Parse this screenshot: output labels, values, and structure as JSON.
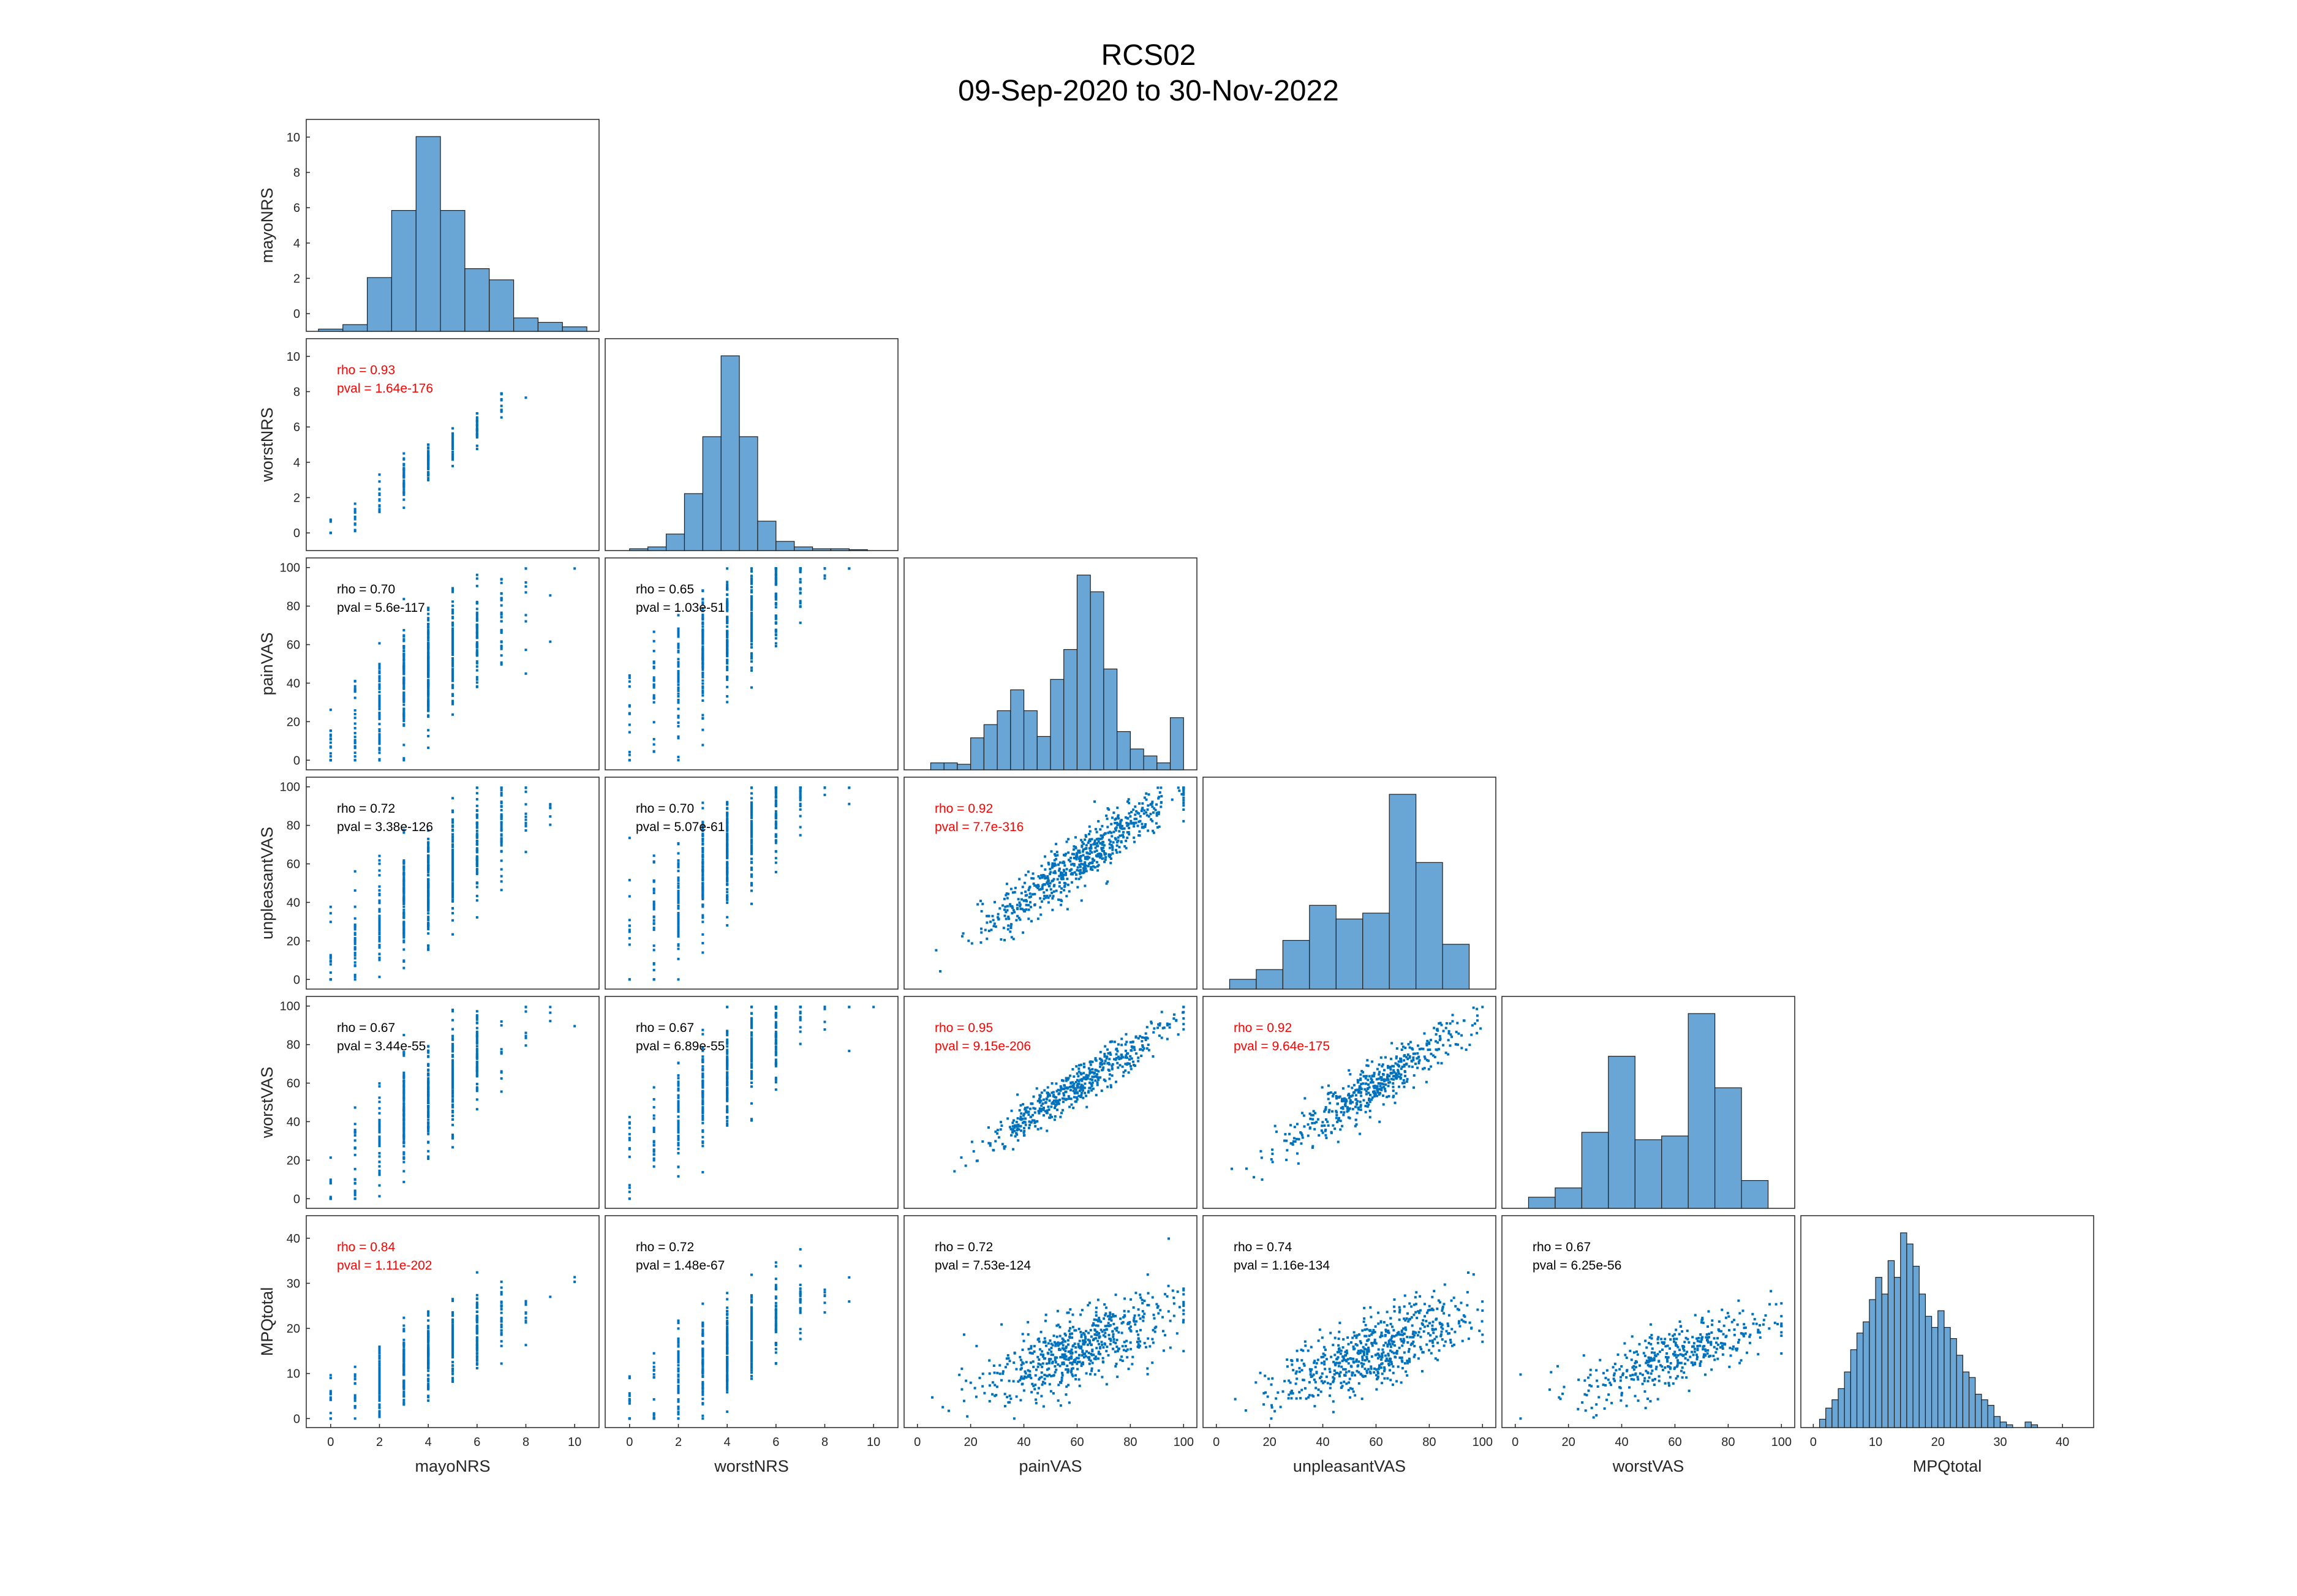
{
  "title": "RCS02",
  "subtitle": "09-Sep-2020 to 30-Nov-2022",
  "chart_data": {
    "type": "scatter-matrix",
    "variables": [
      "mayoNRS",
      "worstNRS",
      "painVAS",
      "unpleasantVAS",
      "worstVAS",
      "MPQtotal"
    ],
    "colors": {
      "bar_fill": "#6aa6d5",
      "bar_edge": "#1f1f1f",
      "point": "#0072bd",
      "significant_text": "#ff0000",
      "normal_text": "#000000"
    },
    "panels": [
      {
        "name": "mayoNRS",
        "xlim": [
          -1,
          11
        ],
        "ylim": [
          -1,
          11
        ],
        "xticks": [
          0,
          2,
          4,
          6,
          8,
          10
        ],
        "yticks": [
          0,
          2,
          4,
          6,
          8,
          10
        ],
        "histogram": {
          "edges": [
            -0.5,
            0.5,
            1.5,
            2.5,
            3.5,
            4.5,
            5.5,
            6.5,
            7.5,
            8.5,
            9.5,
            10.5
          ],
          "heights": [
            0.1,
            0.3,
            2.4,
            5.4,
            8.7,
            5.4,
            2.8,
            2.3,
            0.6,
            0.4,
            0.2
          ]
        }
      },
      {
        "name": "worstNRS",
        "xlim": [
          -1,
          11
        ],
        "ylim": [
          -1,
          11
        ],
        "xticks": [
          0,
          2,
          4,
          6,
          8,
          10
        ],
        "yticks": [
          0,
          2,
          4,
          6,
          8,
          10
        ],
        "histogram": {
          "edges": [
            0,
            0.75,
            1.5,
            2.25,
            3,
            3.75,
            4.5,
            5.25,
            6,
            6.75,
            7.5,
            8.25,
            9,
            9.75
          ],
          "heights": [
            0.1,
            0.2,
            0.9,
            3.1,
            6.2,
            10.6,
            6.2,
            1.6,
            0.5,
            0.2,
            0.1,
            0.1,
            0.05
          ]
        }
      },
      {
        "name": "painVAS",
        "xlim": [
          -5,
          105
        ],
        "ylim": [
          -5,
          105
        ],
        "xticks": [
          0,
          20,
          40,
          60,
          80,
          100
        ],
        "yticks": [
          0,
          20,
          40,
          60,
          80,
          100
        ],
        "histogram": {
          "edges": [
            5,
            10,
            15,
            20,
            25,
            30,
            35,
            40,
            45,
            50,
            55,
            60,
            65,
            70,
            75,
            80,
            85,
            90,
            95,
            100
          ],
          "heights": [
            1,
            1,
            0.8,
            4.6,
            6.5,
            8.5,
            11.5,
            8.5,
            4.8,
            13,
            17.3,
            28,
            25.6,
            14.5,
            5.5,
            3,
            2,
            1,
            7.5
          ]
        }
      },
      {
        "name": "unpleasantVAS",
        "xlim": [
          -5,
          105
        ],
        "ylim": [
          -5,
          105
        ],
        "xticks": [
          0,
          20,
          40,
          60,
          80,
          100
        ],
        "yticks": [
          0,
          20,
          40,
          60,
          80,
          100
        ],
        "histogram": {
          "edges": [
            5,
            15,
            25,
            35,
            45,
            55,
            65,
            75,
            85,
            95
          ],
          "heights": [
            0.5,
            1,
            2.5,
            4.3,
            3.6,
            3.9,
            10,
            6.5,
            2.3,
            2.8
          ]
        }
      },
      {
        "name": "worstVAS",
        "xlim": [
          -5,
          105
        ],
        "ylim": [
          -5,
          105
        ],
        "xticks": [
          0,
          20,
          40,
          60,
          80,
          100
        ],
        "yticks": [
          0,
          20,
          40,
          60,
          80,
          100
        ],
        "histogram": {
          "edges": [
            5,
            15,
            25,
            35,
            45,
            55,
            65,
            75,
            85,
            95
          ],
          "heights": [
            0.6,
            1.1,
            4.1,
            8.2,
            3.7,
            3.9,
            10.5,
            6.5,
            1.5,
            0.7
          ]
        }
      },
      {
        "name": "MPQtotal",
        "xlim": [
          -2,
          45
        ],
        "ylim": [
          -2,
          45
        ],
        "xticks": [
          0,
          10,
          20,
          30,
          40
        ],
        "yticks": [
          0,
          10,
          20,
          30,
          40
        ],
        "histogram": {
          "edges": [
            1,
            2,
            3,
            4,
            5,
            6,
            7,
            8,
            9,
            10,
            11,
            12,
            13,
            14,
            15,
            16,
            17,
            18,
            19,
            20,
            21,
            22,
            23,
            24,
            25,
            26,
            27,
            28,
            29,
            30,
            31,
            32,
            33,
            34,
            35,
            36,
            37
          ],
          "heights": [
            3,
            7,
            10,
            14,
            20,
            28,
            34,
            38,
            46,
            54,
            48,
            60,
            54,
            70,
            66,
            58,
            48,
            40,
            36,
            42,
            36,
            32,
            26,
            20,
            18,
            12,
            10,
            8,
            4,
            2,
            1,
            0,
            0,
            2,
            1,
            0
          ]
        }
      }
    ],
    "correlations": [
      {
        "row": 1,
        "col": 0,
        "rho": "rho = 0.93",
        "pval": "pval = 1.64e-176",
        "significant": true,
        "slope": 1.0,
        "intercept": 0.0,
        "xmin": 0,
        "xmax": 10,
        "noise": 0.6,
        "n": 180,
        "step": 1
      },
      {
        "row": 2,
        "col": 0,
        "rho": "rho = 0.70",
        "pval": "pval = 5.6e-117",
        "significant": false,
        "slope": 8.6,
        "intercept": 12,
        "xmin": 0,
        "xmax": 10,
        "noise": 14,
        "n": 520,
        "step": 1
      },
      {
        "row": 2,
        "col": 1,
        "rho": "rho = 0.65",
        "pval": "pval = 1.03e-51",
        "significant": false,
        "slope": 11,
        "intercept": 22,
        "xmin": 0,
        "xmax": 10,
        "noise": 15,
        "n": 460,
        "step": 1
      },
      {
        "row": 3,
        "col": 0,
        "rho": "rho = 0.72",
        "pval": "pval = 3.38e-126",
        "significant": false,
        "slope": 9.2,
        "intercept": 12,
        "xmin": 0,
        "xmax": 10,
        "noise": 14,
        "n": 520,
        "step": 1
      },
      {
        "row": 3,
        "col": 1,
        "rho": "rho = 0.70",
        "pval": "pval = 5.07e-61",
        "significant": false,
        "slope": 11.5,
        "intercept": 20,
        "xmin": 0,
        "xmax": 10,
        "noise": 15,
        "n": 460,
        "step": 1
      },
      {
        "row": 3,
        "col": 2,
        "rho": "rho = 0.92",
        "pval": "pval = 7.7e-316",
        "significant": true,
        "slope": 0.98,
        "intercept": 2,
        "xmin": 2,
        "xmax": 100,
        "noise": 7,
        "n": 640,
        "step": 0
      },
      {
        "row": 4,
        "col": 0,
        "rho": "rho = 0.67",
        "pval": "pval = 3.44e-55",
        "significant": false,
        "slope": 10,
        "intercept": 12,
        "xmin": 0,
        "xmax": 10,
        "noise": 13,
        "n": 400,
        "step": 1
      },
      {
        "row": 4,
        "col": 1,
        "rho": "rho = 0.67",
        "pval": "pval = 6.89e-55",
        "significant": false,
        "slope": 11,
        "intercept": 20,
        "xmin": 0,
        "xmax": 10,
        "noise": 14,
        "n": 400,
        "step": 1
      },
      {
        "row": 4,
        "col": 2,
        "rho": "rho = 0.95",
        "pval": "pval = 9.15e-206",
        "significant": true,
        "slope": 0.9,
        "intercept": 5,
        "xmin": 2,
        "xmax": 100,
        "noise": 5,
        "n": 520,
        "step": 0
      },
      {
        "row": 4,
        "col": 3,
        "rho": "rho = 0.92",
        "pval": "pval = 9.64e-175",
        "significant": true,
        "slope": 0.9,
        "intercept": 5,
        "xmin": 2,
        "xmax": 100,
        "noise": 6,
        "n": 500,
        "step": 0
      },
      {
        "row": 5,
        "col": 0,
        "rho": "rho = 0.84",
        "pval": "pval = 1.11e-202",
        "significant": true,
        "slope": 2.7,
        "intercept": 3,
        "xmin": 0,
        "xmax": 10,
        "noise": 4,
        "n": 460,
        "step": 1
      },
      {
        "row": 5,
        "col": 1,
        "rho": "rho = 0.72",
        "pval": "pval = 1.48e-67",
        "significant": false,
        "slope": 3.2,
        "intercept": 3,
        "xmin": 0,
        "xmax": 10,
        "noise": 5,
        "n": 420,
        "step": 1
      },
      {
        "row": 5,
        "col": 2,
        "rho": "rho = 0.72",
        "pval": "pval = 7.53e-124",
        "significant": false,
        "slope": 0.22,
        "intercept": 2,
        "xmin": 2,
        "xmax": 100,
        "noise": 4,
        "n": 620,
        "step": 0
      },
      {
        "row": 5,
        "col": 3,
        "rho": "rho = 0.74",
        "pval": "pval = 1.16e-134",
        "significant": false,
        "slope": 0.22,
        "intercept": 2,
        "xmin": 2,
        "xmax": 100,
        "noise": 4,
        "n": 620,
        "step": 0
      },
      {
        "row": 5,
        "col": 4,
        "rho": "rho = 0.67",
        "pval": "pval = 6.25e-56",
        "significant": false,
        "slope": 0.2,
        "intercept": 2,
        "xmin": 2,
        "xmax": 100,
        "noise": 3.5,
        "n": 420,
        "step": 0
      }
    ]
  }
}
